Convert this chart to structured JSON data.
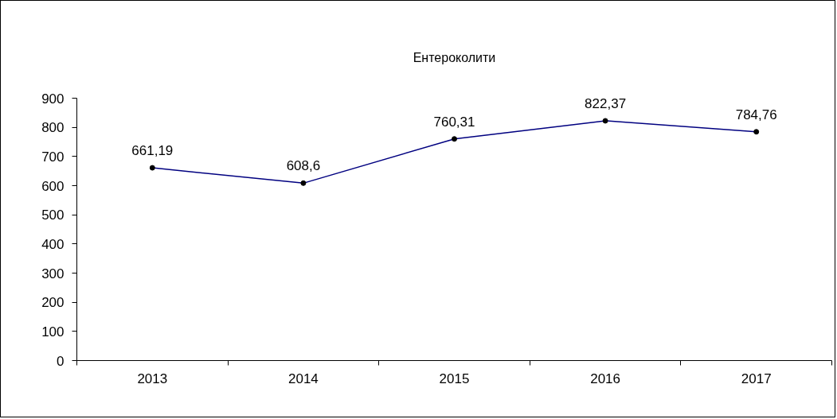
{
  "chart_data": {
    "type": "line",
    "title": "Ентероколити",
    "categories": [
      "2013",
      "2014",
      "2015",
      "2016",
      "2017"
    ],
    "series": [
      {
        "color": "#000080",
        "values": [
          661.19,
          608.6,
          760.31,
          822.37,
          784.76
        ],
        "value_labels": [
          "661,19",
          "608,6",
          "760,31",
          "822,37",
          "784,76"
        ]
      }
    ],
    "ylim": [
      0,
      900
    ],
    "yticks": [
      0,
      100,
      200,
      300,
      400,
      500,
      600,
      700,
      800,
      900
    ],
    "grid": false,
    "marker": "circle",
    "line_style": "solid"
  }
}
